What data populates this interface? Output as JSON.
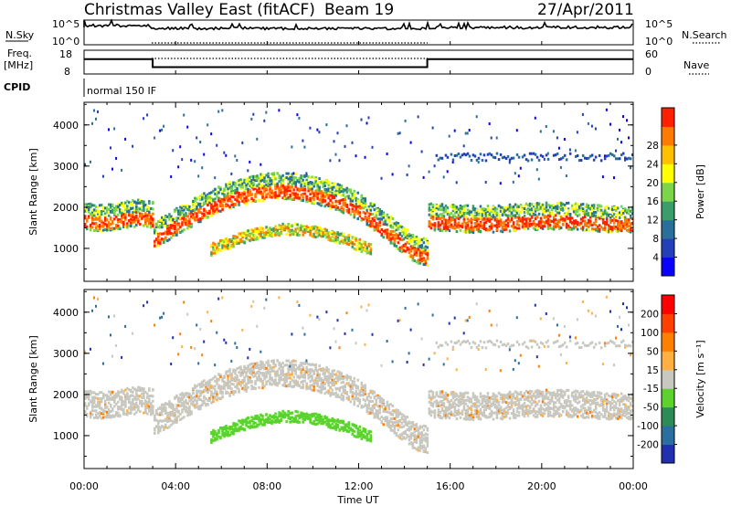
{
  "header": {
    "station": "Christmas Valley East (fitACF)",
    "beam": "Beam 19",
    "date": "27/Apr/2011"
  },
  "top_panels": {
    "nsky_label": "N.Sky",
    "nsearch_label": "N.Search",
    "nsky_ticks": [
      "10^5",
      "10^0"
    ],
    "nsky_right_ticks": [
      "10^5",
      "10^0"
    ],
    "freq_label_1": "Freq.",
    "freq_label_2": "[MHz]",
    "freq_ticks": [
      "18",
      "8"
    ],
    "nave_label": "Nave",
    "nave_ticks": [
      "60",
      "0"
    ],
    "cpid_label": "CPID",
    "cpid_value": "normal 150 IF"
  },
  "chart_data": [
    {
      "type": "heatmap",
      "name": "power",
      "ylabel": "Slant Range [km]",
      "yticks": [
        1000,
        2000,
        3000,
        4000
      ],
      "ylim": [
        200,
        4550
      ],
      "xlim": [
        0,
        24
      ],
      "colorbar_label": "Power [dB]",
      "colorbar_ticks": [
        "4",
        "8",
        "12",
        "16",
        "20",
        "24",
        "28"
      ],
      "colorbar_colors": [
        "#0a00ff",
        "#2440b8",
        "#2a6f9a",
        "#3a9e6a",
        "#7bd44a",
        "#ffff00",
        "#ffc000",
        "#ff7a00",
        "#ff2000"
      ]
    },
    {
      "type": "heatmap",
      "name": "velocity",
      "ylabel": "Slant Range [km]",
      "yticks": [
        1000,
        2000,
        3000,
        4000
      ],
      "ylim": [
        200,
        4550
      ],
      "xlim": [
        0,
        24
      ],
      "colorbar_label": "Velocity [m s⁻¹]",
      "colorbar_ticks": [
        "200",
        "100",
        "50",
        "15",
        "-15",
        "-50",
        "-100",
        "-200"
      ],
      "colorbar_colors": [
        "#2030b0",
        "#2a6fa0",
        "#2e8b57",
        "#5bd22e",
        "#c8c8c0",
        "#ffb040",
        "#ff8000",
        "#ff4000",
        "#ff0000"
      ]
    }
  ],
  "x_axis": {
    "ticks": [
      "00:00",
      "04:00",
      "08:00",
      "12:00",
      "16:00",
      "20:00",
      "00:00"
    ],
    "label": "Time UT"
  },
  "freq_series": {
    "x": [
      0,
      3,
      3,
      15,
      15,
      24
    ],
    "mhz": [
      14.5,
      14.5,
      10.5,
      10.5,
      14.5,
      14.5
    ]
  }
}
